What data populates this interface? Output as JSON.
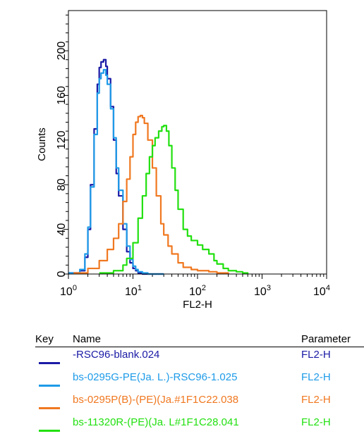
{
  "chart_data": {
    "type": "line",
    "title": "",
    "xlabel": "FL2-H",
    "ylabel": "Counts",
    "xscale": "log",
    "xlim": [
      1,
      10000
    ],
    "ylim": [
      0,
      236
    ],
    "x_ticks": [
      {
        "base": "10",
        "exp": "0"
      },
      {
        "base": "10",
        "exp": "1"
      },
      {
        "base": "10",
        "exp": "2"
      },
      {
        "base": "10",
        "exp": "3"
      },
      {
        "base": "10",
        "exp": "4"
      }
    ],
    "y_ticks": [
      "0",
      "40",
      "80",
      "120",
      "160",
      "200"
    ],
    "series": [
      {
        "name": "-RSC96-blank.024",
        "color": "#1a1aa6",
        "x": [
          1,
          1.5,
          1.8,
          2.0,
          2.2,
          2.5,
          2.8,
          3.0,
          3.2,
          3.5,
          3.8,
          4.0,
          4.5,
          5.0,
          5.5,
          6.0,
          7.0,
          8.0,
          9.0,
          10,
          11,
          12,
          14,
          17,
          20,
          30
        ],
        "y": [
          1,
          3,
          15,
          40,
          80,
          130,
          170,
          185,
          190,
          192,
          186,
          175,
          150,
          120,
          90,
          70,
          40,
          20,
          10,
          5,
          3,
          1,
          0,
          0,
          0,
          0
        ]
      },
      {
        "name": "bs-0295G-PE(Ja. L.)-RSC96-1.025",
        "color": "#1e9be8",
        "x": [
          1,
          1.5,
          1.8,
          2.0,
          2.2,
          2.5,
          2.8,
          3.0,
          3.2,
          3.5,
          3.8,
          4.0,
          4.5,
          5.0,
          5.5,
          6.0,
          7.0,
          8.0,
          9.0,
          10,
          11,
          12,
          14,
          17,
          20,
          30
        ],
        "y": [
          1,
          4,
          18,
          42,
          78,
          125,
          162,
          175,
          180,
          183,
          178,
          170,
          148,
          122,
          95,
          75,
          45,
          25,
          13,
          7,
          4,
          2,
          1,
          0,
          0,
          0
        ]
      },
      {
        "name": "bs-0295P(B)-(PE)(Ja.#1F1C22.038",
        "color": "#f07820",
        "x": [
          1.2,
          2,
          3,
          4,
          5,
          6,
          7,
          8,
          9,
          10,
          11,
          12,
          13,
          14,
          15,
          17,
          20,
          23,
          27,
          30,
          35,
          40,
          50,
          60,
          80,
          100,
          150,
          200,
          300
        ],
        "y": [
          1,
          5,
          12,
          22,
          32,
          45,
          65,
          85,
          105,
          125,
          136,
          141,
          142,
          140,
          135,
          120,
          95,
          70,
          45,
          35,
          25,
          18,
          10,
          6,
          4,
          3,
          2,
          1,
          0
        ]
      },
      {
        "name": "bs-11320R-(PE)(Ja. L#1F1C28.041",
        "color": "#22e010",
        "x": [
          3,
          5,
          7,
          8,
          10,
          12,
          14,
          16,
          18,
          20,
          22,
          25,
          28,
          30,
          33,
          36,
          40,
          45,
          50,
          60,
          70,
          80,
          100,
          120,
          150,
          180,
          200,
          250,
          300,
          400,
          500,
          600
        ],
        "y": [
          1,
          3,
          8,
          14,
          28,
          50,
          70,
          90,
          105,
          115,
          122,
          128,
          132,
          133,
          128,
          115,
          95,
          75,
          58,
          40,
          34,
          30,
          26,
          22,
          18,
          12,
          9,
          5,
          3,
          2,
          1,
          0
        ]
      }
    ]
  },
  "key": {
    "headers": {
      "key": "Key",
      "name": "Name",
      "parameter": "Parameter"
    },
    "rows": [
      {
        "name": "-RSC96-blank.024",
        "parameter": "FL2-H",
        "color": "#1a1aa6"
      },
      {
        "name": "bs-0295G-PE(Ja. L.)-RSC96-1.025",
        "parameter": "FL2-H",
        "color": "#1e9be8"
      },
      {
        "name": "bs-0295P(B)-(PE)(Ja.#1F1C22.038",
        "parameter": "FL2-H",
        "color": "#f07820"
      },
      {
        "name": "bs-11320R-(PE)(Ja. L#1F1C28.041",
        "parameter": "FL2-H",
        "color": "#22e010"
      }
    ]
  }
}
